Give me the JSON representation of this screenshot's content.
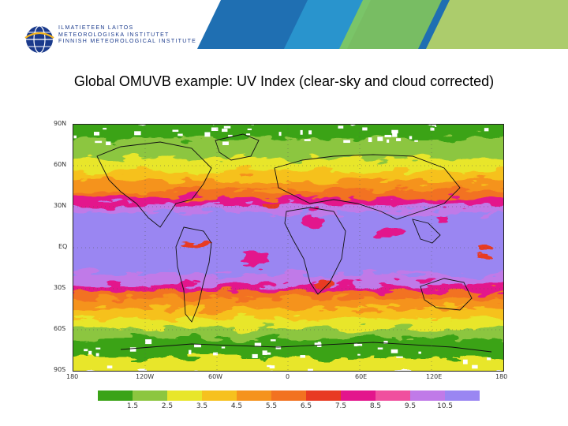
{
  "header": {
    "org_lines": [
      "ILMATIETEEN LAITOS",
      "METEOROLOGISKA INSTITUTET",
      "FINNISH METEOROLOGICAL INSTITUTE"
    ],
    "logo_icon": "globe-logo-icon",
    "band_colors": [
      "#1f6fb2",
      "#2c9bd1",
      "#8fd14f",
      "#cfe35a"
    ]
  },
  "slide": {
    "title": "Global OMUVB example: UV Index (clear-sky and cloud corrected)"
  },
  "map": {
    "lat_labels": [
      "90N",
      "60N",
      "30N",
      "EQ",
      "30S",
      "60S",
      "90S"
    ],
    "lon_labels": [
      "180",
      "120W",
      "60W",
      "0",
      "60E",
      "120E",
      "180"
    ]
  },
  "colorbar": {
    "colors": [
      "#3aa317",
      "#8cc63f",
      "#e8e62a",
      "#f6c11e",
      "#f5931d",
      "#f27220",
      "#e83a22",
      "#e3158c",
      "#f0509e",
      "#c07ae8",
      "#9a86f2"
    ],
    "labels": [
      "1.5",
      "2.5",
      "3.5",
      "4.5",
      "5.5",
      "6.5",
      "7.5",
      "8.5",
      "9.5",
      "10.5"
    ]
  }
}
